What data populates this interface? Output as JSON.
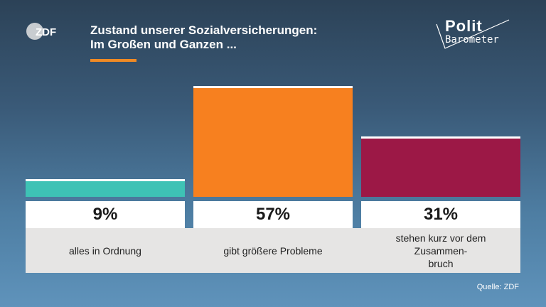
{
  "header": {
    "title_line1": "Zustand unserer Sozialversicherungen:",
    "title_line2": "Im Großen und Ganzen ...",
    "logo_text": "ZDF",
    "brand_line1": "Polit",
    "brand_line2": "Barometer"
  },
  "colors": {
    "accent": "#f08a24"
  },
  "chart_data": {
    "type": "bar",
    "categories": [
      "alles in Ordnung",
      "gibt größere Probleme",
      "stehen kurz vor dem\nZusammen-\nbruch"
    ],
    "values": [
      9,
      57,
      31
    ],
    "value_labels": [
      "9%",
      "57%",
      "31%"
    ],
    "colors": [
      "#3ec2b5",
      "#f7801f",
      "#9c1846"
    ],
    "unit": "%",
    "ylim": [
      0,
      60
    ],
    "grid": false
  },
  "footer": {
    "source": "Quelle: ZDF"
  }
}
